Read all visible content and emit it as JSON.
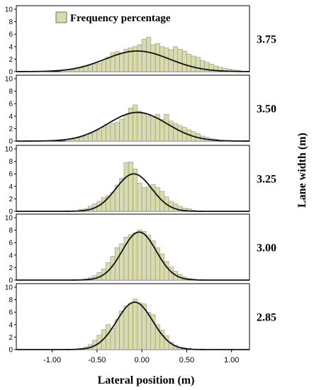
{
  "chart_data": {
    "type": "bar",
    "xlabel": "Lateral position (m)",
    "ylabel": "Lane width (m)",
    "legend": {
      "label": "Frequency percentage",
      "placement": "top-left"
    },
    "colors": {
      "bar_fill": "#d9dcaa",
      "bar_stroke": "#8c8f99",
      "curve": "#111111"
    },
    "xlim": [
      -1.4,
      1.2
    ],
    "xticks": [
      -1.0,
      -0.5,
      0.0,
      0.5,
      1.0
    ],
    "xtick_labels": [
      "-1.00",
      "-0.50",
      "0.00",
      "0.50",
      "1.00"
    ],
    "ylim": [
      0,
      10
    ],
    "yticks": [
      0,
      2,
      4,
      6,
      8,
      10
    ],
    "bin_width": 0.05,
    "panels": [
      {
        "label": "3.75",
        "bins_start": -0.9,
        "values": [
          0.2,
          0.3,
          0.3,
          0.5,
          0.6,
          0.8,
          1.0,
          1.2,
          1.3,
          1.6,
          2.3,
          3.0,
          3.2,
          3.0,
          3.6,
          3.8,
          4.0,
          4.3,
          5.2,
          5.5,
          4.3,
          4.5,
          4.0,
          3.8,
          3.5,
          4.0,
          3.6,
          3.3,
          2.8,
          2.5,
          2.3,
          1.8,
          1.5,
          1.2,
          0.9,
          0.7,
          0.5,
          0.4,
          0.3,
          0.2
        ],
        "curve": {
          "mean": -0.05,
          "sd": 0.36,
          "peak": 3.3
        }
      },
      {
        "label": "3.50",
        "bins_start": -0.85,
        "values": [
          0.3,
          0.3,
          0.5,
          0.6,
          0.8,
          1.2,
          1.5,
          1.8,
          2.2,
          2.5,
          2.8,
          3.0,
          3.5,
          4.2,
          5.3,
          5.8,
          4.8,
          4.5,
          4.0,
          3.8,
          4.3,
          3.5,
          4.3,
          3.2,
          2.8,
          2.5,
          2.2,
          1.8,
          1.5,
          1.2,
          0.8,
          0.6,
          0.4,
          0.3
        ],
        "curve": {
          "mean": -0.05,
          "sd": 0.33,
          "peak": 4.6
        }
      },
      {
        "label": "3.25",
        "bins_start": -0.7,
        "values": [
          0.3,
          0.4,
          0.8,
          1.2,
          1.6,
          2.2,
          2.5,
          3.0,
          4.2,
          5.3,
          7.8,
          7.9,
          6.8,
          4.5,
          3.8,
          3.9,
          4.3,
          3.8,
          3.2,
          2.3,
          1.6,
          1.2,
          0.8,
          0.5,
          0.4,
          0.2
        ],
        "curve": {
          "mean": -0.09,
          "sd": 0.2,
          "peak": 6.0
        }
      },
      {
        "label": "3.00",
        "bins_start": -0.65,
        "values": [
          0.2,
          0.4,
          0.7,
          1.2,
          1.8,
          2.8,
          3.8,
          5.2,
          5.8,
          6.9,
          7.3,
          7.6,
          8.0,
          7.8,
          7.2,
          6.3,
          5.2,
          4.2,
          3.0,
          2.1,
          1.4,
          0.9,
          0.5,
          0.3,
          0.2
        ],
        "curve": {
          "mean": -0.03,
          "sd": 0.19,
          "peak": 7.7
        }
      },
      {
        "label": "2.85",
        "bins_start": -0.7,
        "values": [
          0.2,
          0.4,
          0.8,
          1.5,
          2.3,
          3.2,
          4.0,
          3.4,
          4.8,
          6.2,
          7.0,
          7.4,
          8.1,
          7.5,
          7.3,
          6.0,
          5.6,
          4.0,
          3.1,
          2.2,
          1.2,
          0.7,
          0.4,
          0.3,
          0.2
        ],
        "curve": {
          "mean": -0.08,
          "sd": 0.2,
          "peak": 7.6
        }
      }
    ]
  }
}
